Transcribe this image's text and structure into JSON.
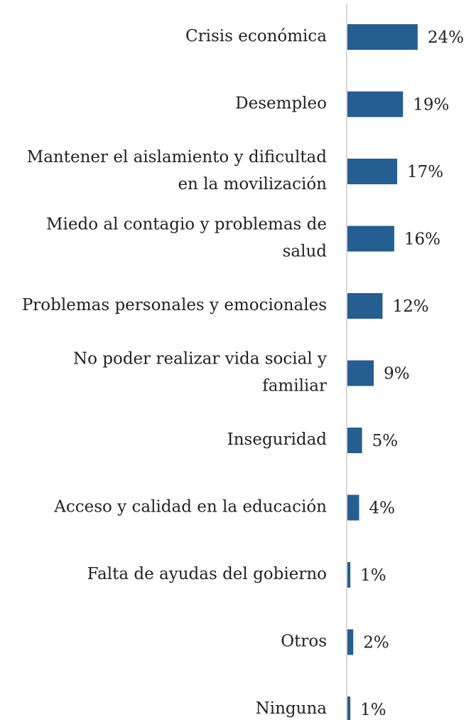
{
  "chart_data": {
    "type": "barh",
    "categories": [
      "Crisis económica",
      "Desempleo",
      "Mantener el aislamiento y dificultad en la movilización",
      "Miedo al contagio y problemas de salud",
      "Problemas personales y emocionales",
      "No poder realizar vida social y familiar",
      "Inseguridad",
      "Acceso y calidad en la educación",
      "Falta de ayudas del gobierno",
      "Otros",
      "Ninguna"
    ],
    "values": [
      24,
      19,
      17,
      16,
      12,
      9,
      5,
      4,
      1,
      2,
      1
    ],
    "value_labels": [
      "24%",
      "19%",
      "17%",
      "16%",
      "12%",
      "9%",
      "5%",
      "4%",
      "1%",
      "2%",
      "1%"
    ],
    "color": "#255e91"
  }
}
